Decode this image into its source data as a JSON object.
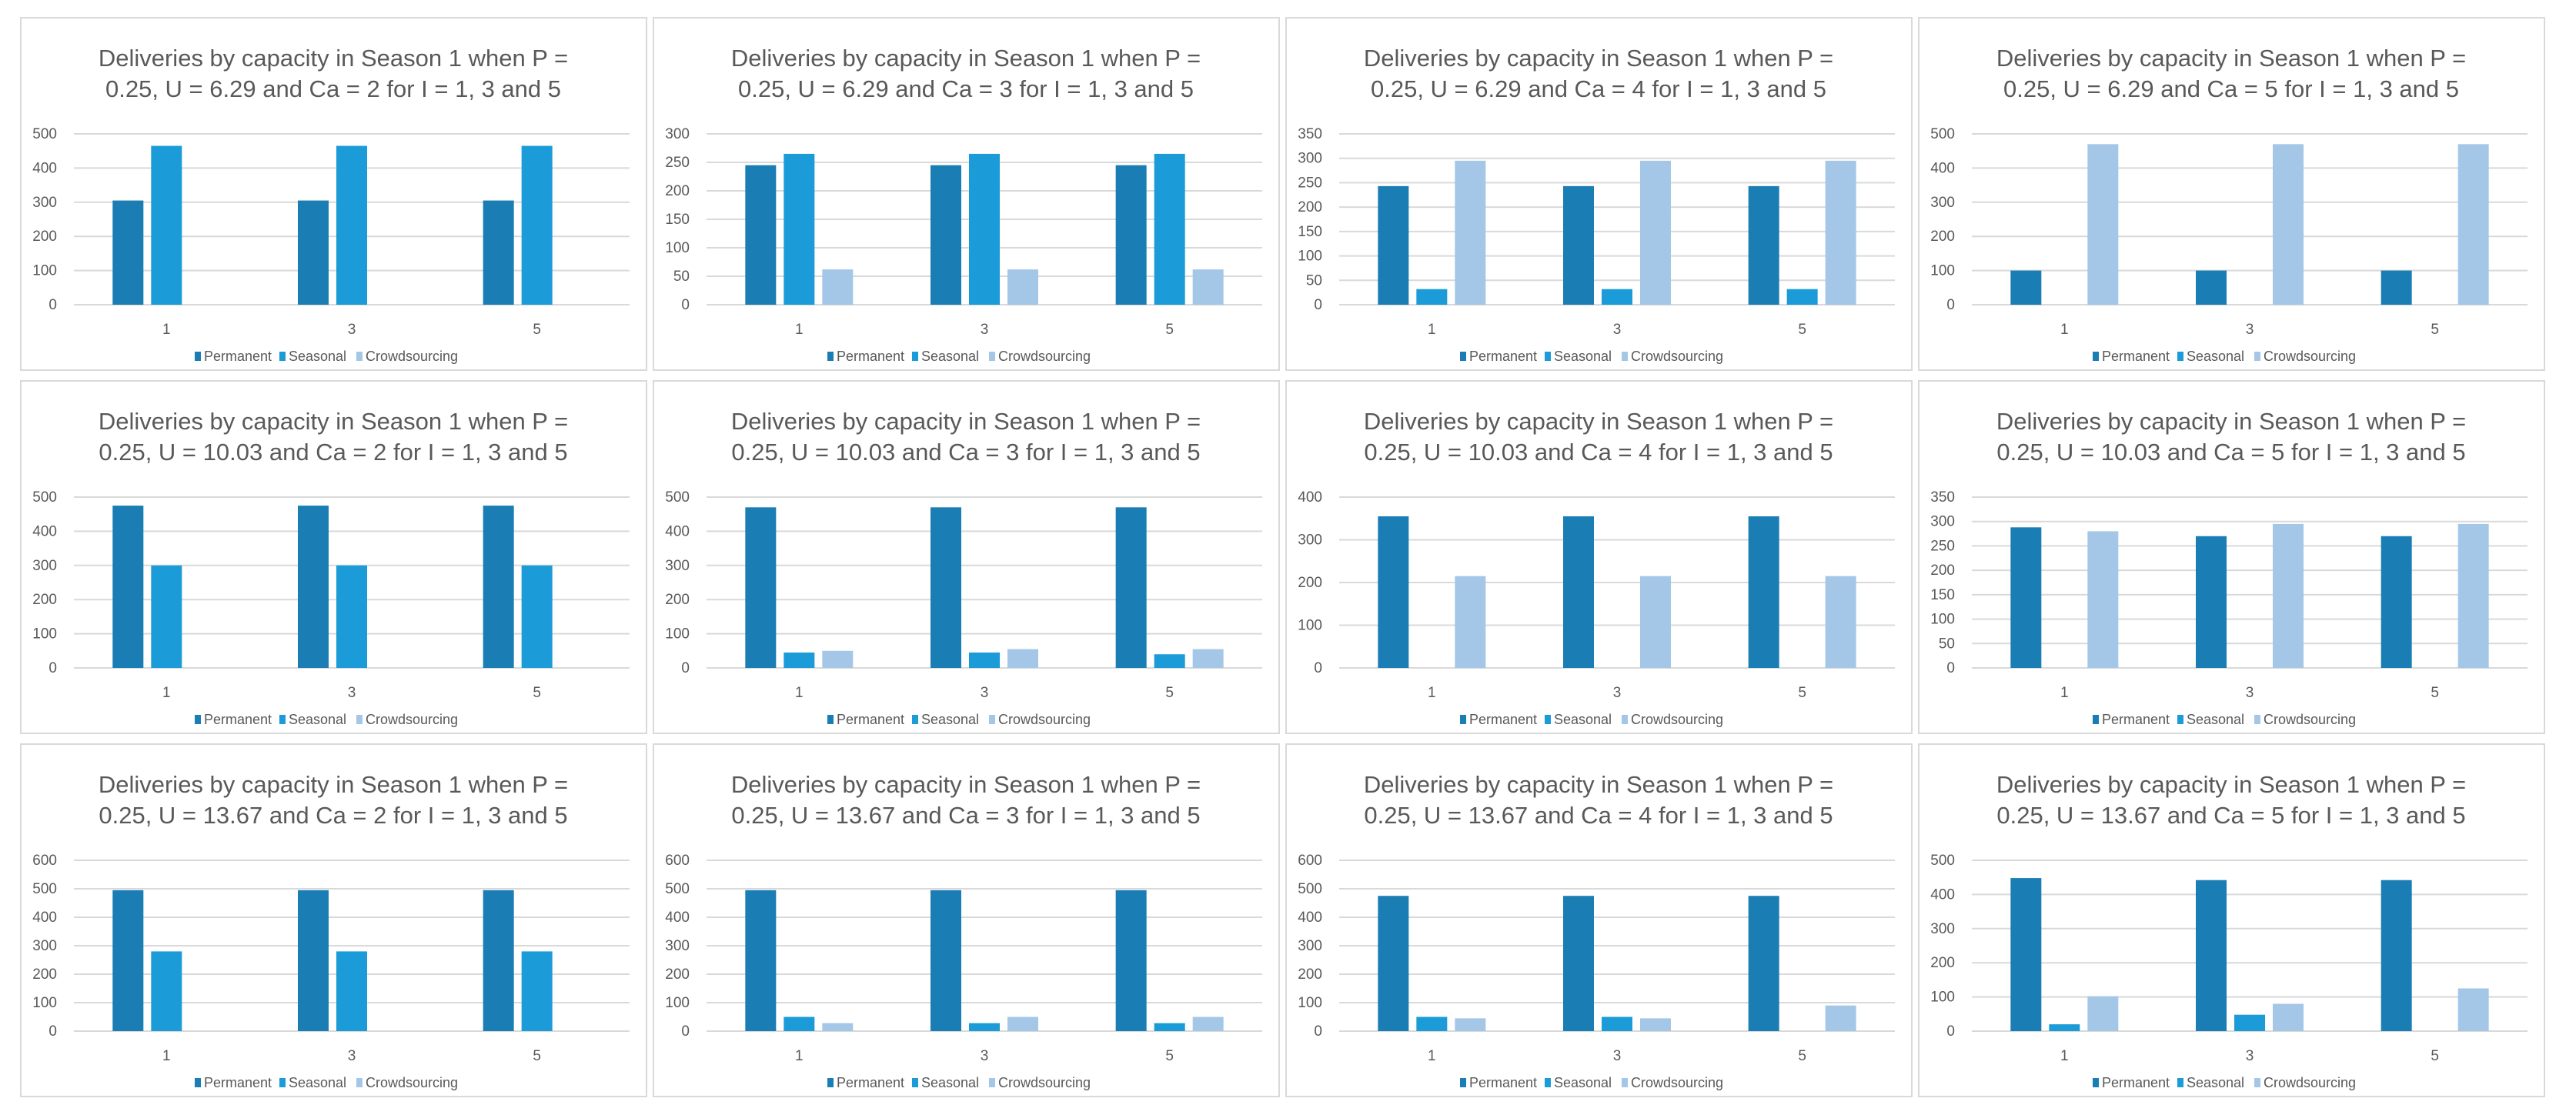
{
  "chart_data": [
    {
      "type": "bar",
      "title": "Deliveries by capacity in Season 1 when P = 0.25, U = 6.29 and Ca = 2 for I = 1, 3 and 5",
      "categories": [
        "1",
        "3",
        "5"
      ],
      "ylim": [
        0,
        500
      ],
      "ystep": 100,
      "series": [
        {
          "name": "Permanent",
          "values": [
            305,
            305,
            305
          ]
        },
        {
          "name": "Seasonal",
          "values": [
            465,
            465,
            465
          ]
        },
        {
          "name": "Crowdsourcing",
          "values": [
            0,
            0,
            0
          ]
        }
      ]
    },
    {
      "type": "bar",
      "title": "Deliveries by capacity in Season 1 when P = 0.25, U = 6.29 and Ca = 3 for I = 1, 3 and 5",
      "categories": [
        "1",
        "3",
        "5"
      ],
      "ylim": [
        0,
        300
      ],
      "ystep": 50,
      "series": [
        {
          "name": "Permanent",
          "values": [
            245,
            245,
            245
          ]
        },
        {
          "name": "Seasonal",
          "values": [
            265,
            265,
            265
          ]
        },
        {
          "name": "Crowdsourcing",
          "values": [
            62,
            62,
            62
          ]
        }
      ]
    },
    {
      "type": "bar",
      "title": "Deliveries by capacity in Season 1 when P = 0.25, U = 6.29 and Ca = 4 for I = 1, 3 and 5",
      "categories": [
        "1",
        "3",
        "5"
      ],
      "ylim": [
        0,
        350
      ],
      "ystep": 50,
      "series": [
        {
          "name": "Permanent",
          "values": [
            243,
            243,
            243
          ]
        },
        {
          "name": "Seasonal",
          "values": [
            32,
            32,
            32
          ]
        },
        {
          "name": "Crowdsourcing",
          "values": [
            295,
            295,
            295
          ]
        }
      ]
    },
    {
      "type": "bar",
      "title": "Deliveries by capacity in Season 1 when P = 0.25, U = 6.29 and Ca = 5 for I = 1, 3 and 5",
      "categories": [
        "1",
        "3",
        "5"
      ],
      "ylim": [
        0,
        500
      ],
      "ystep": 100,
      "series": [
        {
          "name": "Permanent",
          "values": [
            100,
            100,
            100
          ]
        },
        {
          "name": "Seasonal",
          "values": [
            0,
            0,
            0
          ]
        },
        {
          "name": "Crowdsourcing",
          "values": [
            470,
            470,
            470
          ]
        }
      ]
    },
    {
      "type": "bar",
      "title": "Deliveries by capacity in Season 1 when P = 0.25, U = 10.03 and Ca = 2 for I = 1, 3 and 5",
      "categories": [
        "1",
        "3",
        "5"
      ],
      "ylim": [
        0,
        500
      ],
      "ystep": 100,
      "series": [
        {
          "name": "Permanent",
          "values": [
            475,
            475,
            475
          ]
        },
        {
          "name": "Seasonal",
          "values": [
            300,
            300,
            300
          ]
        },
        {
          "name": "Crowdsourcing",
          "values": [
            0,
            0,
            0
          ]
        }
      ]
    },
    {
      "type": "bar",
      "title": "Deliveries by capacity in Season 1 when P = 0.25, U = 10.03 and Ca = 3 for I = 1, 3 and 5",
      "categories": [
        "1",
        "3",
        "5"
      ],
      "ylim": [
        0,
        500
      ],
      "ystep": 100,
      "series": [
        {
          "name": "Permanent",
          "values": [
            470,
            470,
            470
          ]
        },
        {
          "name": "Seasonal",
          "values": [
            45,
            45,
            40
          ]
        },
        {
          "name": "Crowdsourcing",
          "values": [
            50,
            55,
            55
          ]
        }
      ]
    },
    {
      "type": "bar",
      "title": "Deliveries by capacity in Season 1 when P = 0.25, U = 10.03 and Ca = 4 for I = 1, 3 and 5",
      "categories": [
        "1",
        "3",
        "5"
      ],
      "ylim": [
        0,
        400
      ],
      "ystep": 100,
      "series": [
        {
          "name": "Permanent",
          "values": [
            355,
            355,
            355
          ]
        },
        {
          "name": "Seasonal",
          "values": [
            0,
            0,
            0
          ]
        },
        {
          "name": "Crowdsourcing",
          "values": [
            215,
            215,
            215
          ]
        }
      ]
    },
    {
      "type": "bar",
      "title": "Deliveries by capacity in Season 1 when P = 0.25, U = 10.03 and Ca = 5 for I = 1, 3 and 5",
      "categories": [
        "1",
        "3",
        "5"
      ],
      "ylim": [
        0,
        350
      ],
      "ystep": 50,
      "series": [
        {
          "name": "Permanent",
          "values": [
            288,
            270,
            270
          ]
        },
        {
          "name": "Seasonal",
          "values": [
            0,
            0,
            0
          ]
        },
        {
          "name": "Crowdsourcing",
          "values": [
            280,
            295,
            295
          ]
        }
      ]
    },
    {
      "type": "bar",
      "title": "Deliveries by capacity in Season 1 when P = 0.25, U = 13.67 and Ca = 2 for I = 1, 3 and 5",
      "categories": [
        "1",
        "3",
        "5"
      ],
      "ylim": [
        0,
        600
      ],
      "ystep": 100,
      "series": [
        {
          "name": "Permanent",
          "values": [
            495,
            495,
            495
          ]
        },
        {
          "name": "Seasonal",
          "values": [
            280,
            280,
            280
          ]
        },
        {
          "name": "Crowdsourcing",
          "values": [
            0,
            0,
            0
          ]
        }
      ]
    },
    {
      "type": "bar",
      "title": "Deliveries by capacity in Season 1 when P = 0.25, U = 13.67 and Ca = 3 for I = 1, 3 and 5",
      "categories": [
        "1",
        "3",
        "5"
      ],
      "ylim": [
        0,
        600
      ],
      "ystep": 100,
      "series": [
        {
          "name": "Permanent",
          "values": [
            495,
            495,
            495
          ]
        },
        {
          "name": "Seasonal",
          "values": [
            50,
            28,
            28
          ]
        },
        {
          "name": "Crowdsourcing",
          "values": [
            28,
            50,
            50
          ]
        }
      ]
    },
    {
      "type": "bar",
      "title": "Deliveries by capacity in Season 1 when P = 0.25, U = 13.67 and Ca = 4 for I = 1, 3 and 5",
      "categories": [
        "1",
        "3",
        "5"
      ],
      "ylim": [
        0,
        600
      ],
      "ystep": 100,
      "series": [
        {
          "name": "Permanent",
          "values": [
            475,
            475,
            475
          ]
        },
        {
          "name": "Seasonal",
          "values": [
            50,
            50,
            0
          ]
        },
        {
          "name": "Crowdsourcing",
          "values": [
            45,
            45,
            90
          ]
        }
      ]
    },
    {
      "type": "bar",
      "title": "Deliveries by capacity in Season 1 when P = 0.25, U = 13.67 and Ca = 5 for I = 1, 3 and 5",
      "categories": [
        "1",
        "3",
        "5"
      ],
      "ylim": [
        0,
        500
      ],
      "ystep": 100,
      "series": [
        {
          "name": "Permanent",
          "values": [
            448,
            442,
            442
          ]
        },
        {
          "name": "Seasonal",
          "values": [
            20,
            48,
            0
          ]
        },
        {
          "name": "Crowdsourcing",
          "values": [
            102,
            80,
            125
          ]
        }
      ]
    }
  ],
  "colors": {
    "Permanent": "#1a7db4",
    "Seasonal": "#1b9bd7",
    "Crowdsourcing": "#a4c7e7",
    "grid": "#d9d9d9",
    "text": "#595959"
  },
  "legend_position": "bottom"
}
